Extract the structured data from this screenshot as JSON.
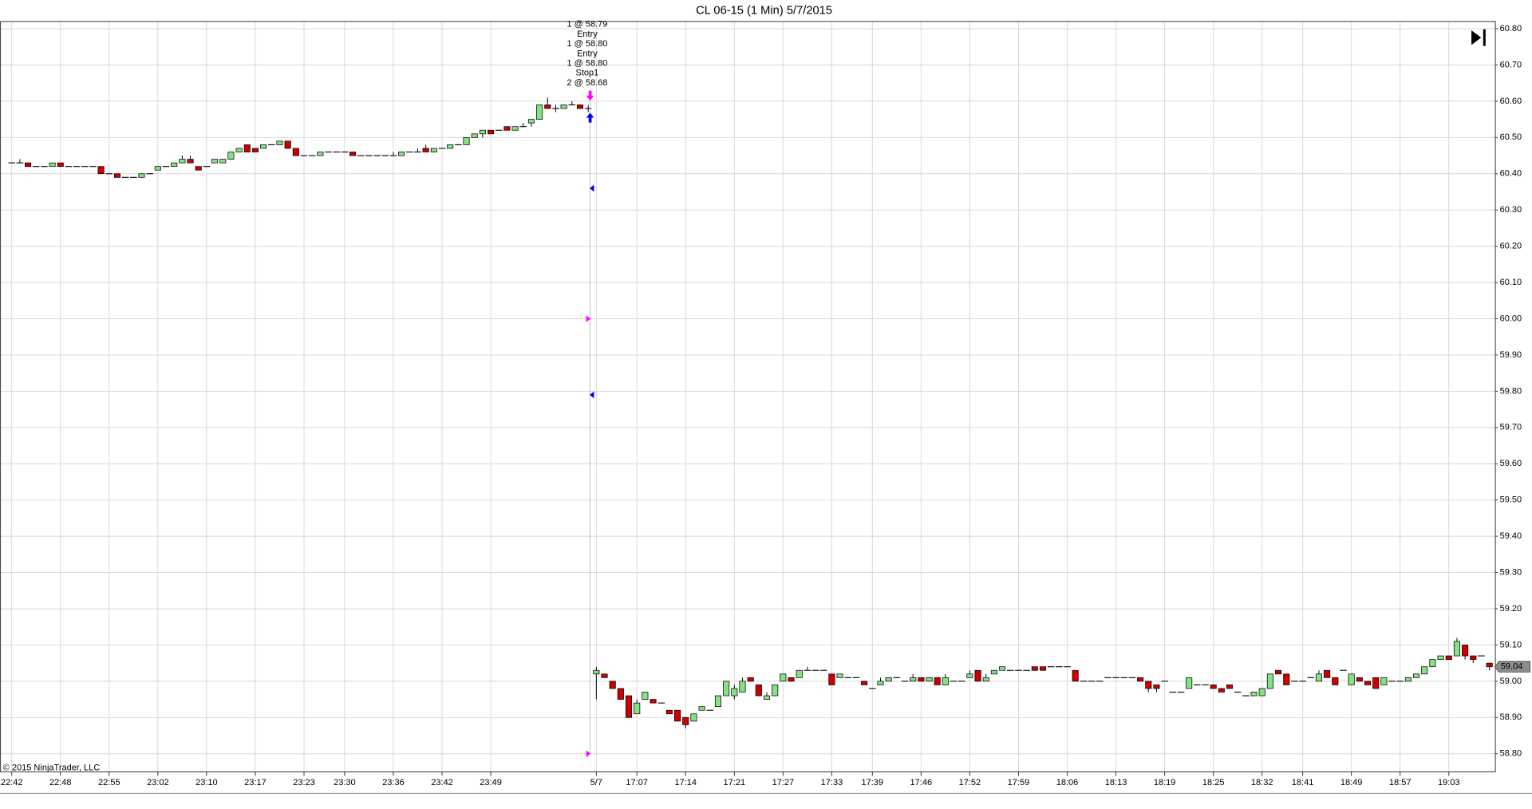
{
  "chart_data": {
    "type": "candlestick",
    "title": "CL 06-15 (1 Min)  5/7/2015",
    "copyright": "© 2015 NinjaTrader, LLC",
    "up_color": "#86e086",
    "down_color": "#cc0000",
    "ylim": [
      58.75,
      60.82
    ],
    "yticks": [
      {
        "value": 58.8,
        "label": "58.80"
      },
      {
        "value": 58.9,
        "label": "58.90"
      },
      {
        "value": 59.0,
        "label": "59.00"
      },
      {
        "value": 59.1,
        "label": "59.10"
      },
      {
        "value": 59.2,
        "label": "59.20"
      },
      {
        "value": 59.3,
        "label": "59.30"
      },
      {
        "value": 59.4,
        "label": "59.40"
      },
      {
        "value": 59.5,
        "label": "59.50"
      },
      {
        "value": 59.6,
        "label": "59.60"
      },
      {
        "value": 59.7,
        "label": "59.70"
      },
      {
        "value": 59.8,
        "label": "59.80"
      },
      {
        "value": 59.9,
        "label": "59.90"
      },
      {
        "value": 60.0,
        "label": "60.00"
      },
      {
        "value": 60.1,
        "label": "60.10"
      },
      {
        "value": 60.2,
        "label": "60.20"
      },
      {
        "value": 60.3,
        "label": "60.30"
      },
      {
        "value": 60.4,
        "label": "60.40"
      },
      {
        "value": 60.5,
        "label": "60.50"
      },
      {
        "value": 60.6,
        "label": "60.60"
      },
      {
        "value": 60.7,
        "label": "60.70"
      },
      {
        "value": 60.8,
        "label": "60.80"
      }
    ],
    "grid": true,
    "categories": [
      "22:42",
      null,
      null,
      null,
      null,
      null,
      "22:48",
      null,
      null,
      null,
      null,
      null,
      "22:55",
      null,
      null,
      null,
      null,
      null,
      "23:02",
      null,
      null,
      null,
      null,
      null,
      "23:10",
      null,
      null,
      null,
      null,
      null,
      "23:17",
      null,
      null,
      null,
      null,
      null,
      "23:23",
      null,
      null,
      null,
      null,
      "23:30",
      null,
      null,
      null,
      null,
      null,
      "23:36",
      null,
      null,
      null,
      null,
      null,
      "23:42",
      null,
      null,
      null,
      null,
      null,
      "23:49",
      null,
      null,
      null,
      null,
      null,
      null,
      null,
      null,
      null,
      null,
      null,
      null,
      "5/7",
      null,
      null,
      null,
      null,
      "17:07",
      null,
      null,
      null,
      null,
      null,
      "17:14",
      null,
      null,
      null,
      null,
      null,
      "17:21",
      null,
      null,
      null,
      null,
      null,
      "17:27",
      null,
      null,
      null,
      null,
      null,
      "17:33",
      null,
      null,
      null,
      null,
      "17:39",
      null,
      null,
      null,
      null,
      null,
      "17:46",
      null,
      null,
      null,
      null,
      null,
      "17:52",
      null,
      null,
      null,
      null,
      null,
      "17:59",
      null,
      null,
      null,
      null,
      null,
      "18:06",
      null,
      null,
      null,
      null,
      null,
      "18:13",
      null,
      null,
      null,
      null,
      null,
      "18:19",
      null,
      null,
      null,
      null,
      null,
      "18:25",
      null,
      null,
      null,
      null,
      null,
      "18:32",
      null,
      null,
      null,
      null,
      "18:41",
      null,
      null,
      null,
      null,
      null,
      "18:49",
      null,
      null,
      null,
      null,
      null,
      "18:57",
      null,
      null,
      null,
      null,
      null,
      "19:03",
      null,
      null,
      null,
      null,
      null
    ],
    "ohlc": [
      [
        60.43,
        60.43,
        60.43,
        60.43
      ],
      [
        60.43,
        60.44,
        60.43,
        60.43
      ],
      [
        60.43,
        60.43,
        60.42,
        60.42
      ],
      [
        60.42,
        60.42,
        60.42,
        60.42
      ],
      [
        60.42,
        60.42,
        60.42,
        60.42
      ],
      [
        60.42,
        60.43,
        60.42,
        60.43
      ],
      [
        60.43,
        60.43,
        60.42,
        60.42
      ],
      [
        60.42,
        60.42,
        60.42,
        60.42
      ],
      [
        60.42,
        60.42,
        60.42,
        60.42
      ],
      [
        60.42,
        60.42,
        60.42,
        60.42
      ],
      [
        60.42,
        60.42,
        60.42,
        60.42
      ],
      [
        60.42,
        60.42,
        60.4,
        60.4
      ],
      [
        60.4,
        60.4,
        60.4,
        60.4
      ],
      [
        60.4,
        60.4,
        60.39,
        60.39
      ],
      [
        60.39,
        60.39,
        60.39,
        60.39
      ],
      [
        60.39,
        60.39,
        60.39,
        60.39
      ],
      [
        60.39,
        60.4,
        60.39,
        60.4
      ],
      [
        60.4,
        60.4,
        60.4,
        60.4
      ],
      [
        60.41,
        60.42,
        60.41,
        60.42
      ],
      [
        60.42,
        60.42,
        60.42,
        60.42
      ],
      [
        60.42,
        60.43,
        60.42,
        60.43
      ],
      [
        60.43,
        60.45,
        60.43,
        60.44
      ],
      [
        60.44,
        60.45,
        60.43,
        60.43
      ],
      [
        60.42,
        60.42,
        60.41,
        60.41
      ],
      [
        60.42,
        60.42,
        60.42,
        60.42
      ],
      [
        60.43,
        60.44,
        60.43,
        60.44
      ],
      [
        60.43,
        60.44,
        60.43,
        60.44
      ],
      [
        60.44,
        60.46,
        60.44,
        60.46
      ],
      [
        60.46,
        60.47,
        60.46,
        60.47
      ],
      [
        60.48,
        60.48,
        60.46,
        60.46
      ],
      [
        60.47,
        60.47,
        60.46,
        60.46
      ],
      [
        60.47,
        60.48,
        60.47,
        60.48
      ],
      [
        60.48,
        60.48,
        60.48,
        60.48
      ],
      [
        60.48,
        60.49,
        60.48,
        60.49
      ],
      [
        60.49,
        60.49,
        60.47,
        60.47
      ],
      [
        60.47,
        60.47,
        60.45,
        60.45
      ],
      [
        60.45,
        60.45,
        60.45,
        60.45
      ],
      [
        60.45,
        60.45,
        60.45,
        60.45
      ],
      [
        60.45,
        60.46,
        60.45,
        60.46
      ],
      [
        60.46,
        60.46,
        60.46,
        60.46
      ],
      [
        60.46,
        60.46,
        60.46,
        60.46
      ],
      [
        60.46,
        60.46,
        60.46,
        60.46
      ],
      [
        60.46,
        60.46,
        60.45,
        60.45
      ],
      [
        60.45,
        60.45,
        60.45,
        60.45
      ],
      [
        60.45,
        60.45,
        60.45,
        60.45
      ],
      [
        60.45,
        60.45,
        60.45,
        60.45
      ],
      [
        60.45,
        60.45,
        60.45,
        60.45
      ],
      [
        60.45,
        60.46,
        60.45,
        60.45
      ],
      [
        60.45,
        60.46,
        60.45,
        60.46
      ],
      [
        60.46,
        60.46,
        60.46,
        60.46
      ],
      [
        60.46,
        60.47,
        60.46,
        60.46
      ],
      [
        60.47,
        60.48,
        60.46,
        60.46
      ],
      [
        60.46,
        60.47,
        60.46,
        60.47
      ],
      [
        60.47,
        60.47,
        60.47,
        60.47
      ],
      [
        60.47,
        60.48,
        60.47,
        60.48
      ],
      [
        60.48,
        60.48,
        60.48,
        60.48
      ],
      [
        60.48,
        60.5,
        60.48,
        60.5
      ],
      [
        60.5,
        60.51,
        60.5,
        60.51
      ],
      [
        60.51,
        60.52,
        60.5,
        60.52
      ],
      [
        60.52,
        60.52,
        60.51,
        60.51
      ],
      [
        60.52,
        60.52,
        60.52,
        60.52
      ],
      [
        60.53,
        60.53,
        60.52,
        60.52
      ],
      [
        60.52,
        60.53,
        60.52,
        60.53
      ],
      [
        60.53,
        60.54,
        60.53,
        60.53
      ],
      [
        60.54,
        60.55,
        60.53,
        60.55
      ],
      [
        60.55,
        60.59,
        60.55,
        60.59
      ],
      [
        60.59,
        60.61,
        60.58,
        60.58
      ],
      [
        60.58,
        60.59,
        60.57,
        60.58
      ],
      [
        60.58,
        60.59,
        60.58,
        60.59
      ],
      [
        60.59,
        60.6,
        60.59,
        60.59
      ],
      [
        60.59,
        60.59,
        60.58,
        60.58
      ],
      [
        60.58,
        60.59,
        60.57,
        60.58
      ],
      [
        59.02,
        59.04,
        58.95,
        59.03
      ],
      [
        59.02,
        59.02,
        59.01,
        59.01
      ],
      [
        59.0,
        59.0,
        58.98,
        58.98
      ],
      [
        58.98,
        58.98,
        58.95,
        58.95
      ],
      [
        58.96,
        58.96,
        58.9,
        58.9
      ],
      [
        58.91,
        58.95,
        58.91,
        58.94
      ],
      [
        58.95,
        58.97,
        58.95,
        58.97
      ],
      [
        58.95,
        58.95,
        58.94,
        58.94
      ],
      [
        58.94,
        58.94,
        58.94,
        58.94
      ],
      [
        58.92,
        58.92,
        58.91,
        58.91
      ],
      [
        58.92,
        58.92,
        58.89,
        58.89
      ],
      [
        58.9,
        58.9,
        58.87,
        58.88
      ],
      [
        58.89,
        58.91,
        58.89,
        58.91
      ],
      [
        58.92,
        58.93,
        58.92,
        58.93
      ],
      [
        58.92,
        58.92,
        58.92,
        58.92
      ],
      [
        58.93,
        58.96,
        58.93,
        58.96
      ],
      [
        58.96,
        59.0,
        58.96,
        59.0
      ],
      [
        58.96,
        58.99,
        58.95,
        58.98
      ],
      [
        58.97,
        59.01,
        58.97,
        59.0
      ],
      [
        59.01,
        59.01,
        59.0,
        59.0
      ],
      [
        58.99,
        58.99,
        58.96,
        58.96
      ],
      [
        58.95,
        58.97,
        58.95,
        58.96
      ],
      [
        58.96,
        58.99,
        58.96,
        58.99
      ],
      [
        59.0,
        59.02,
        59.0,
        59.02
      ],
      [
        59.01,
        59.01,
        59.0,
        59.0
      ],
      [
        59.01,
        59.03,
        59.01,
        59.03
      ],
      [
        59.03,
        59.04,
        59.03,
        59.03
      ],
      [
        59.03,
        59.03,
        59.03,
        59.03
      ],
      [
        59.03,
        59.03,
        59.03,
        59.03
      ],
      [
        59.02,
        59.02,
        58.99,
        58.99
      ],
      [
        59.01,
        59.02,
        59.01,
        59.02
      ],
      [
        59.01,
        59.01,
        59.01,
        59.01
      ],
      [
        59.01,
        59.01,
        59.01,
        59.01
      ],
      [
        59.0,
        59.0,
        58.99,
        58.99
      ],
      [
        58.98,
        58.98,
        58.98,
        58.98
      ],
      [
        58.99,
        59.01,
        58.99,
        59.0
      ],
      [
        59.0,
        59.01,
        59.0,
        59.01
      ],
      [
        59.01,
        59.01,
        59.01,
        59.01
      ],
      [
        59.0,
        59.0,
        59.0,
        59.0
      ],
      [
        59.0,
        59.02,
        59.0,
        59.01
      ],
      [
        59.01,
        59.01,
        59.0,
        59.0
      ],
      [
        59.0,
        59.01,
        59.0,
        59.01
      ],
      [
        59.01,
        59.01,
        58.99,
        58.99
      ],
      [
        58.99,
        59.02,
        58.99,
        59.01
      ],
      [
        59.0,
        59.0,
        59.0,
        59.0
      ],
      [
        59.0,
        59.0,
        59.0,
        59.0
      ],
      [
        59.01,
        59.03,
        59.01,
        59.02
      ],
      [
        59.03,
        59.03,
        59.0,
        59.0
      ],
      [
        59.0,
        59.02,
        59.0,
        59.01
      ],
      [
        59.02,
        59.03,
        59.02,
        59.03
      ],
      [
        59.03,
        59.04,
        59.03,
        59.04
      ],
      [
        59.03,
        59.03,
        59.03,
        59.03
      ],
      [
        59.03,
        59.03,
        59.03,
        59.03
      ],
      [
        59.03,
        59.03,
        59.03,
        59.03
      ],
      [
        59.04,
        59.04,
        59.03,
        59.03
      ],
      [
        59.04,
        59.04,
        59.03,
        59.03
      ],
      [
        59.04,
        59.04,
        59.04,
        59.04
      ],
      [
        59.04,
        59.04,
        59.04,
        59.04
      ],
      [
        59.04,
        59.04,
        59.04,
        59.04
      ],
      [
        59.03,
        59.03,
        59.0,
        59.0
      ],
      [
        59.0,
        59.0,
        59.0,
        59.0
      ],
      [
        59.0,
        59.0,
        59.0,
        59.0
      ],
      [
        59.0,
        59.0,
        59.0,
        59.0
      ],
      [
        59.01,
        59.01,
        59.01,
        59.01
      ],
      [
        59.01,
        59.01,
        59.01,
        59.01
      ],
      [
        59.01,
        59.01,
        59.01,
        59.01
      ],
      [
        59.01,
        59.01,
        59.01,
        59.01
      ],
      [
        59.01,
        59.01,
        59.0,
        59.0
      ],
      [
        59.0,
        59.0,
        58.97,
        58.98
      ],
      [
        58.99,
        58.99,
        58.97,
        58.98
      ],
      [
        59.0,
        59.0,
        59.0,
        59.0
      ],
      [
        58.97,
        58.97,
        58.97,
        58.97
      ],
      [
        58.97,
        58.97,
        58.97,
        58.97
      ],
      [
        58.98,
        59.01,
        58.98,
        59.01
      ],
      [
        58.99,
        58.99,
        58.99,
        58.99
      ],
      [
        58.99,
        58.99,
        58.99,
        58.99
      ],
      [
        58.99,
        58.99,
        58.98,
        58.98
      ],
      [
        58.98,
        58.98,
        58.97,
        58.97
      ],
      [
        58.99,
        58.99,
        58.98,
        58.98
      ],
      [
        58.97,
        58.97,
        58.97,
        58.97
      ],
      [
        58.96,
        58.96,
        58.96,
        58.96
      ],
      [
        58.96,
        58.97,
        58.96,
        58.97
      ],
      [
        58.96,
        58.98,
        58.96,
        58.98
      ],
      [
        58.98,
        59.02,
        58.98,
        59.02
      ],
      [
        59.03,
        59.03,
        59.02,
        59.02
      ],
      [
        59.02,
        59.02,
        58.99,
        58.99
      ],
      [
        59.0,
        59.0,
        59.0,
        59.0
      ],
      [
        59.0,
        59.0,
        59.0,
        59.0
      ],
      [
        59.01,
        59.01,
        59.01,
        59.01
      ],
      [
        59.0,
        59.03,
        59.0,
        59.02
      ],
      [
        59.03,
        59.03,
        59.01,
        59.01
      ],
      [
        59.01,
        59.01,
        58.99,
        58.99
      ],
      [
        59.03,
        59.03,
        59.03,
        59.03
      ],
      [
        58.99,
        59.02,
        58.99,
        59.02
      ],
      [
        59.01,
        59.01,
        59.0,
        59.0
      ],
      [
        59.0,
        59.0,
        58.99,
        58.99
      ],
      [
        59.01,
        59.01,
        58.98,
        58.98
      ],
      [
        58.99,
        59.01,
        58.99,
        59.01
      ],
      [
        59.0,
        59.0,
        59.0,
        59.0
      ],
      [
        59.0,
        59.0,
        59.0,
        59.0
      ],
      [
        59.0,
        59.01,
        59.0,
        59.01
      ],
      [
        59.01,
        59.02,
        59.01,
        59.02
      ],
      [
        59.02,
        59.04,
        59.02,
        59.04
      ],
      [
        59.04,
        59.06,
        59.04,
        59.06
      ],
      [
        59.06,
        59.07,
        59.06,
        59.07
      ],
      [
        59.07,
        59.07,
        59.06,
        59.06
      ],
      [
        59.07,
        59.12,
        59.07,
        59.11
      ],
      [
        59.1,
        59.1,
        59.06,
        59.07
      ],
      [
        59.07,
        59.07,
        59.05,
        59.06
      ],
      [
        59.07,
        59.07,
        59.07,
        59.07
      ],
      [
        59.05,
        59.05,
        59.03,
        59.04
      ]
    ],
    "last_price": 59.04,
    "trade_labels": [
      "1 @ 58.79",
      "Entry",
      "1 @ 58.80",
      "Entry",
      "1 @ 58.80",
      "Stop1",
      "2 @ 58.68"
    ],
    "executions": [
      {
        "index": 71,
        "price": 60.0,
        "color": "#ff00ff",
        "direction": "right"
      },
      {
        "index": 71,
        "price": 58.8,
        "color": "#ff00ff",
        "direction": "right"
      },
      {
        "index": 71,
        "price": 60.36,
        "color": "#0000ff",
        "direction": "left"
      },
      {
        "index": 71,
        "price": 59.79,
        "color": "#0000ff",
        "direction": "left"
      }
    ],
    "arrows": [
      {
        "index": 71,
        "price": 60.61,
        "color": "#ff00ff",
        "direction": "down"
      },
      {
        "index": 71,
        "price": 60.56,
        "color": "#0000ff",
        "direction": "up"
      }
    ]
  }
}
